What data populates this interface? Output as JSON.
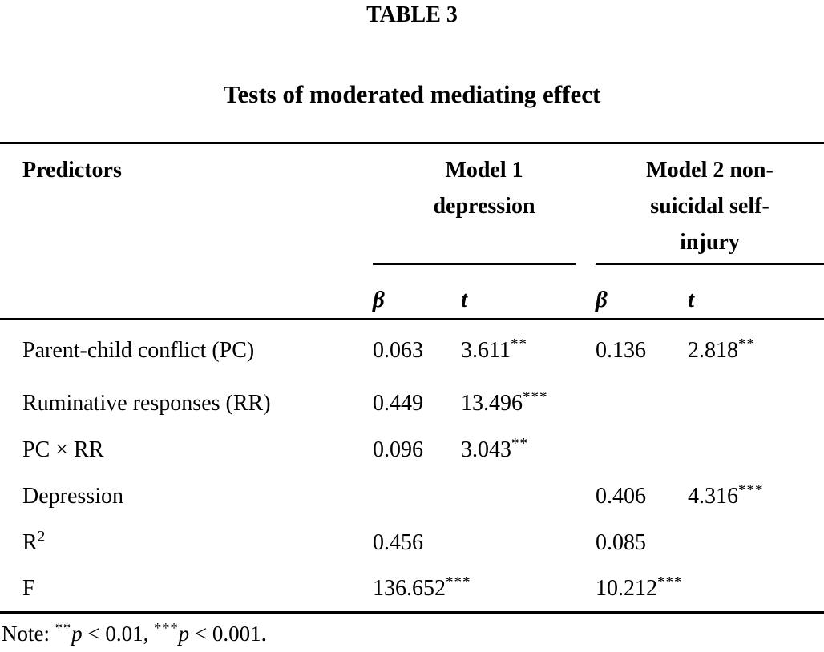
{
  "colors": {
    "text": "#000000",
    "background": "#ffffff",
    "rule": "#000000"
  },
  "table_label": "TABLE 3",
  "title": "Tests of moderated mediating effect",
  "header": {
    "predictors": "Predictors",
    "groups": [
      {
        "label": "Model 1 depression"
      },
      {
        "label": "Model 2 non-suicidal self-injury"
      }
    ],
    "subheaders": [
      "β",
      "t",
      "β",
      "t"
    ]
  },
  "rows": [
    {
      "label": "Parent-child conflict (PC)",
      "m1_beta": "0.063",
      "m1_t": "3.611",
      "m1_t_sup": "**",
      "m2_beta": "0.136",
      "m2_t": "2.818",
      "m2_t_sup": "**"
    },
    {
      "label": "Ruminative responses (RR)",
      "m1_beta": "0.449",
      "m1_t": "13.496",
      "m1_t_sup": "***"
    },
    {
      "label": "PC × RR",
      "m1_beta": "0.096",
      "m1_t": "3.043",
      "m1_t_sup": "**"
    },
    {
      "label": "Depression",
      "m2_beta": "0.406",
      "m2_t": "4.316",
      "m2_t_sup": "***"
    },
    {
      "label": "R",
      "label_sup": "2",
      "m1_beta": "0.456",
      "m2_beta": "0.085"
    },
    {
      "label": "F",
      "m1_beta": "136.652",
      "m1_beta_sup": "***",
      "m2_beta": "10.212",
      "m2_beta_sup": "***"
    }
  ],
  "note": {
    "prefix": "Note: ",
    "sig2_stars": "**",
    "p": "p",
    "sig2_rest": " < 0.01, ",
    "sig3_stars": "***",
    "sig3_rest": " < 0.001."
  }
}
